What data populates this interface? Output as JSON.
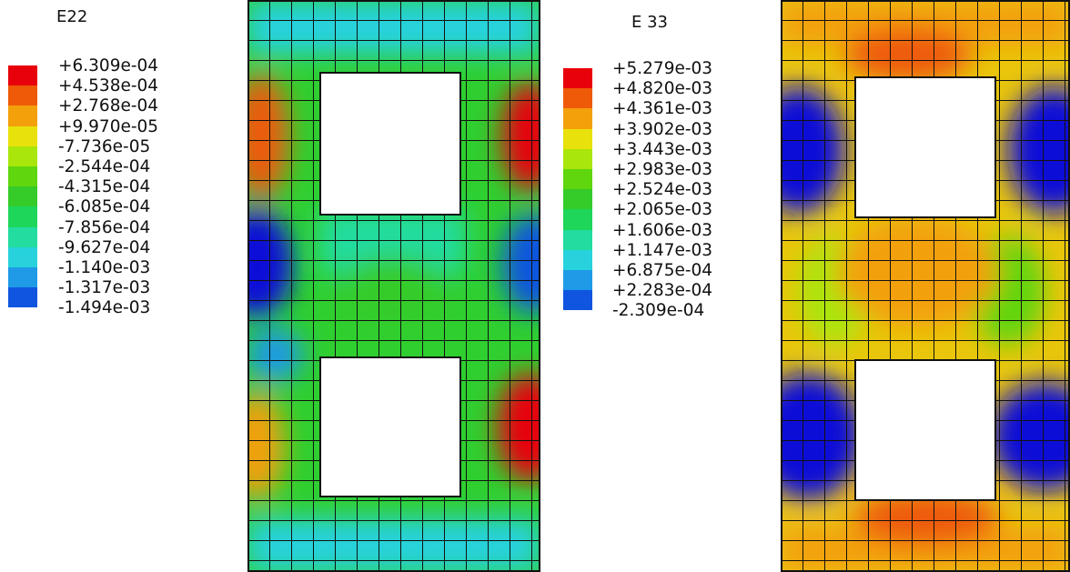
{
  "plot1": {
    "title": "E22",
    "legend": {
      "labels": [
        "+6.309e-04",
        "+4.538e-04",
        "+2.768e-04",
        "+9.970e-05",
        "-7.736e-05",
        "-2.544e-04",
        "-4.315e-04",
        "-6.085e-04",
        "-7.856e-04",
        "-9.627e-04",
        "-1.140e-03",
        "-1.317e-03",
        "-1.494e-03"
      ],
      "colors": [
        "#e8000b",
        "#ee5a08",
        "#f3a00b",
        "#e9e10b",
        "#a9e60b",
        "#5fd60d",
        "#35cc2a",
        "#1ed65a",
        "#22dca0",
        "#27d2dd",
        "#1e9ae6",
        "#0f55e0",
        "#0a10d8"
      ]
    }
  },
  "plot2": {
    "title": "E 33",
    "legend": {
      "labels": [
        "+5.279e-03",
        "+4.820e-03",
        "+4.361e-03",
        "+3.902e-03",
        "+3.443e-03",
        "+2.983e-03",
        "+2.524e-03",
        "+2.065e-03",
        "+1.606e-03",
        "+1.147e-03",
        "+6.875e-04",
        "+2.283e-04",
        "-2.309e-04"
      ],
      "colors": [
        "#e8000b",
        "#ee5a08",
        "#f3a00b",
        "#e9e10b",
        "#a9e60b",
        "#5fd60d",
        "#35cc2a",
        "#1ed65a",
        "#22dca0",
        "#27d2dd",
        "#1e9ae6",
        "#0f55e0",
        "#0a10d8"
      ]
    }
  }
}
